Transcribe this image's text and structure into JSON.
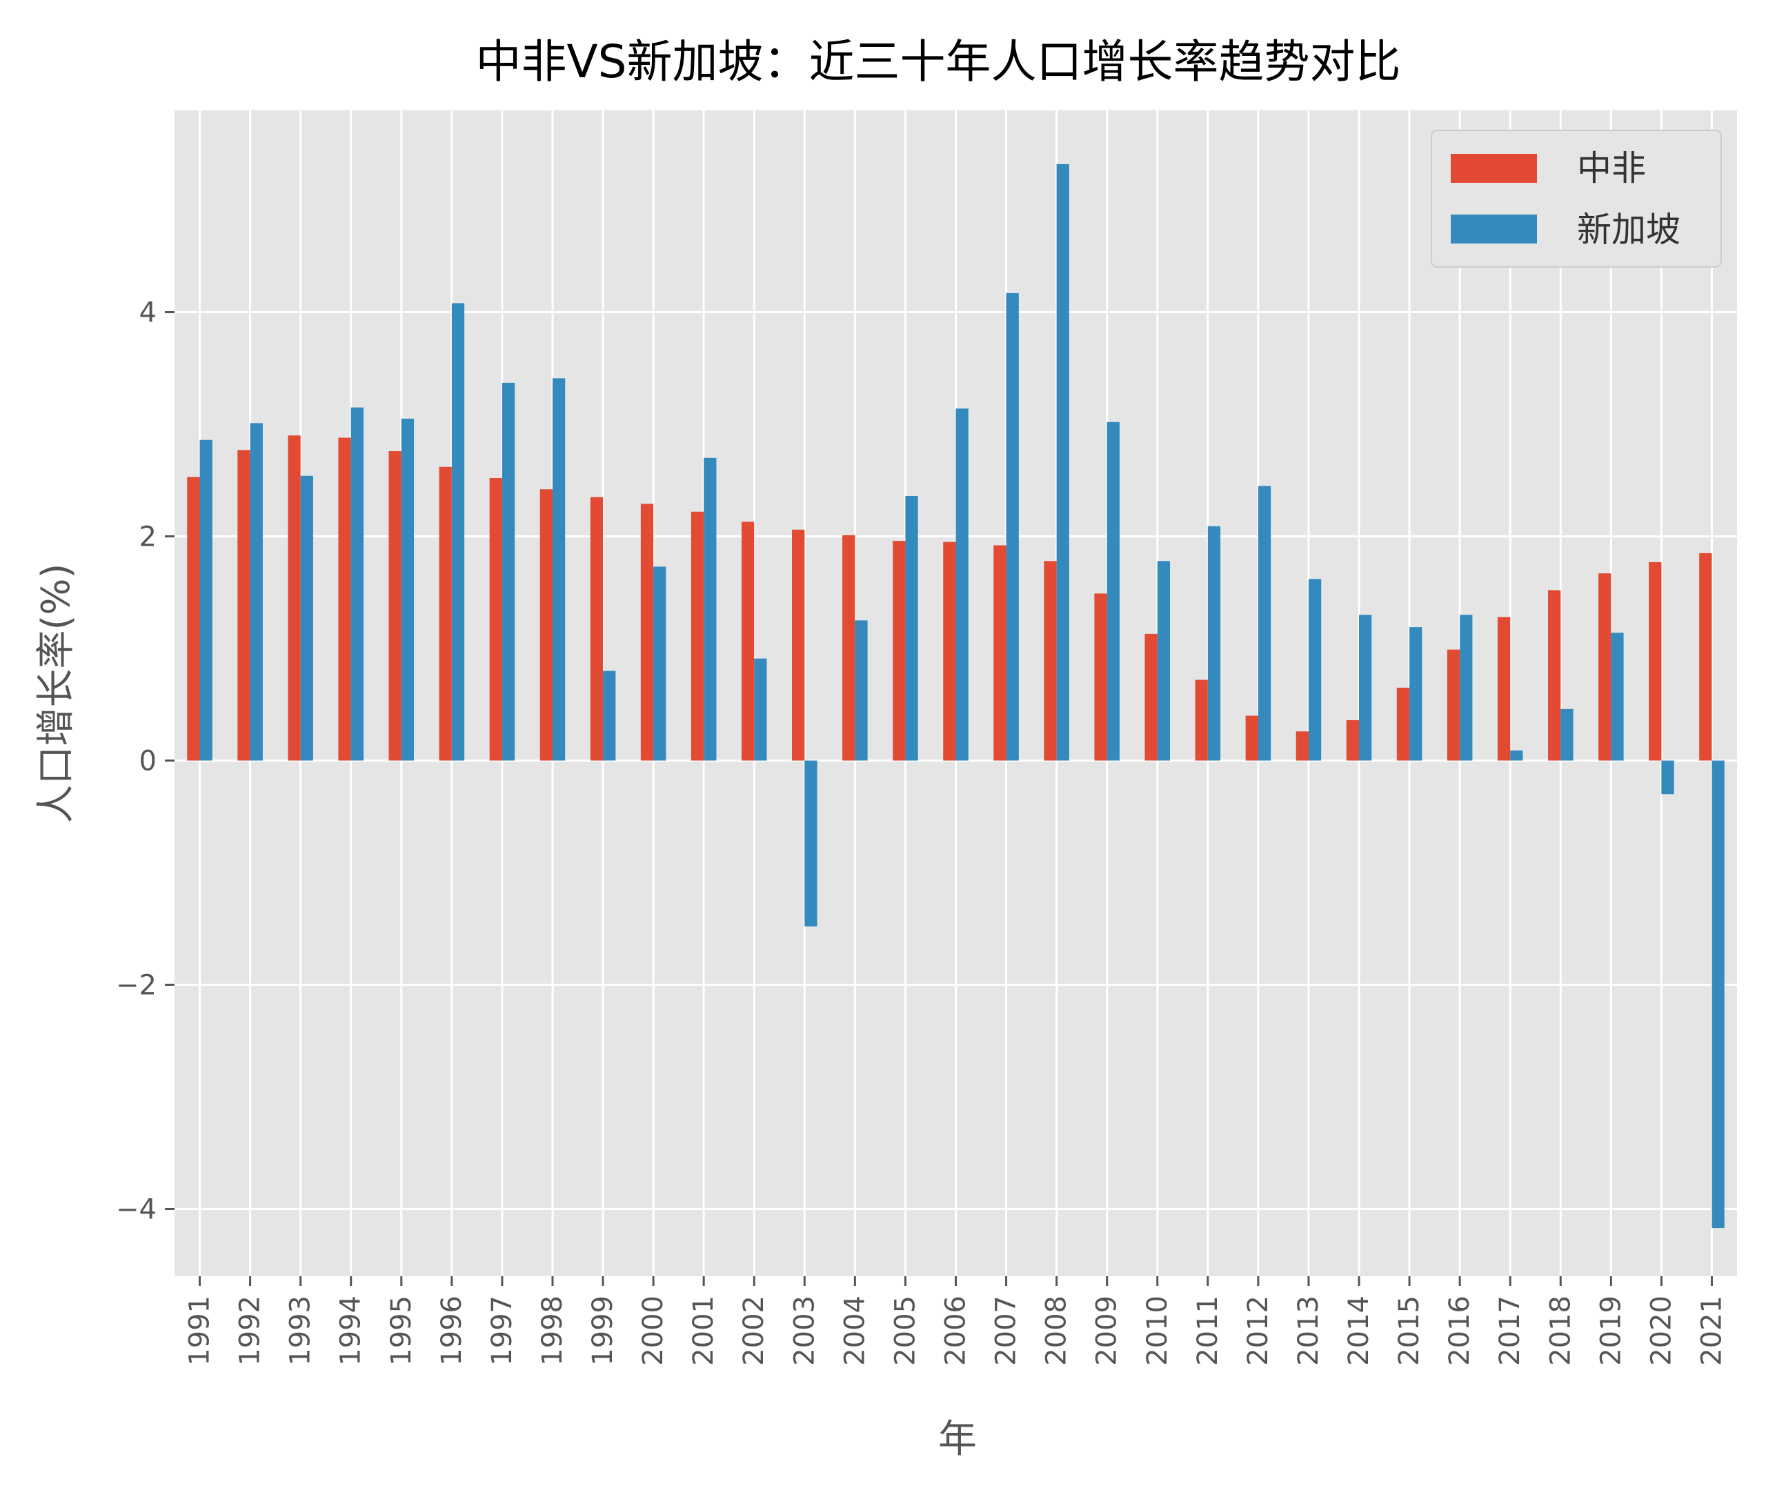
{
  "chart_data": {
    "type": "bar",
    "title": "中非VS新加坡：近三十年人口增长率趋势对比",
    "xlabel": "年",
    "ylabel": "人口增长率(%)",
    "ylim": [
      -4.6,
      5.8
    ],
    "yticks": [
      -4,
      -2,
      0,
      2,
      4
    ],
    "grid": true,
    "legend_position": "top-right",
    "categories": [
      "1991",
      "1992",
      "1993",
      "1994",
      "1995",
      "1996",
      "1997",
      "1998",
      "1999",
      "2000",
      "2001",
      "2002",
      "2003",
      "2004",
      "2005",
      "2006",
      "2007",
      "2008",
      "2009",
      "2010",
      "2011",
      "2012",
      "2013",
      "2014",
      "2015",
      "2016",
      "2017",
      "2018",
      "2019",
      "2020",
      "2021"
    ],
    "series": [
      {
        "name": "中非",
        "color": "#e24a33",
        "values": [
          2.53,
          2.77,
          2.9,
          2.88,
          2.76,
          2.62,
          2.52,
          2.42,
          2.35,
          2.29,
          2.22,
          2.13,
          2.06,
          2.01,
          1.96,
          1.95,
          1.92,
          1.78,
          1.49,
          1.13,
          0.72,
          0.4,
          0.26,
          0.36,
          0.65,
          0.99,
          1.28,
          1.52,
          1.67,
          1.77,
          1.85
        ]
      },
      {
        "name": "新加坡",
        "color": "#348abd",
        "values": [
          2.86,
          3.01,
          2.54,
          3.15,
          3.05,
          4.08,
          3.37,
          3.41,
          0.8,
          1.73,
          2.7,
          0.91,
          -1.48,
          1.25,
          2.36,
          3.14,
          4.17,
          5.32,
          3.02,
          1.78,
          2.09,
          2.45,
          1.62,
          1.3,
          1.19,
          1.3,
          0.09,
          0.46,
          1.14,
          -0.3,
          -4.17
        ]
      }
    ]
  }
}
